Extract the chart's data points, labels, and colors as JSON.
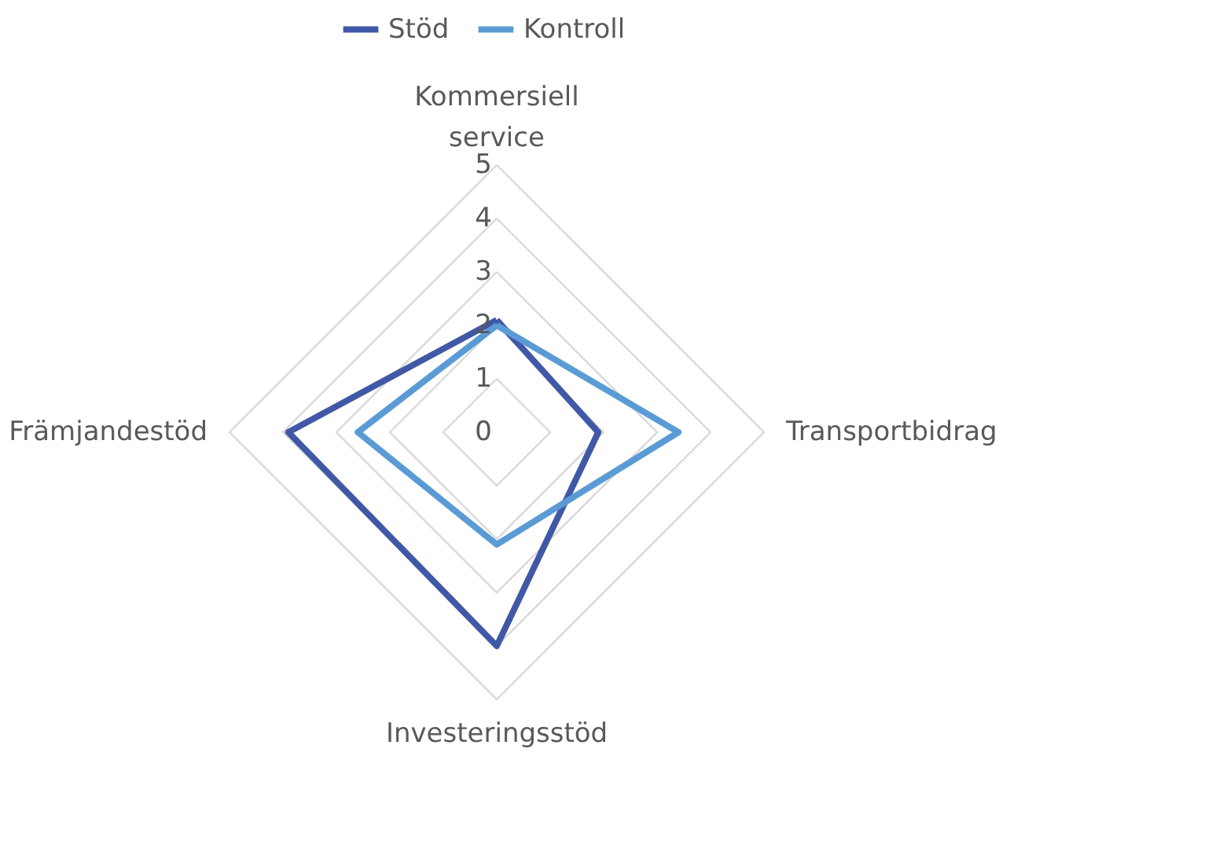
{
  "chart_data": {
    "type": "radar",
    "categories": [
      "Kommersiell service",
      "Transportbidrag",
      "Investeringsstöd",
      "Främjandestöd"
    ],
    "series": [
      {
        "name": "Stöd",
        "color": "#4158a6",
        "values": [
          2.1,
          1.9,
          4.0,
          3.9
        ]
      },
      {
        "name": "Kontroll",
        "color": "#5b9bd5",
        "values": [
          2.0,
          3.4,
          2.1,
          2.6
        ]
      }
    ],
    "ylim": [
      0,
      5
    ],
    "yticks": [
      0,
      1,
      2,
      3,
      4,
      5
    ],
    "grid": true,
    "legend": "top"
  }
}
